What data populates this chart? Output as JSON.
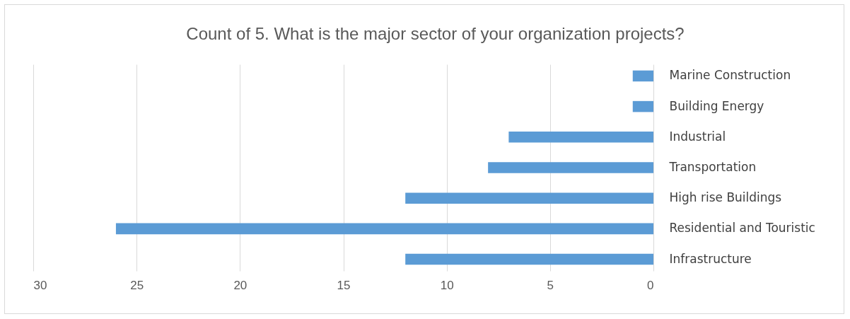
{
  "chart_data": {
    "type": "bar",
    "orientation": "horizontal",
    "title": "Count of 5. What is the major sector of your organization projects?",
    "categories": [
      "Marine Construction",
      "Building Energy",
      "Industrial",
      "Transportation",
      "High rise Buildings",
      "Residential and Touristic",
      "Infrastructure"
    ],
    "values": [
      1,
      1,
      7,
      8,
      12,
      26,
      12
    ],
    "color": "#5b9bd5",
    "xlim": [
      30,
      0
    ],
    "xticks": [
      30,
      25,
      20,
      15,
      10,
      5,
      0
    ],
    "grid": "x"
  }
}
